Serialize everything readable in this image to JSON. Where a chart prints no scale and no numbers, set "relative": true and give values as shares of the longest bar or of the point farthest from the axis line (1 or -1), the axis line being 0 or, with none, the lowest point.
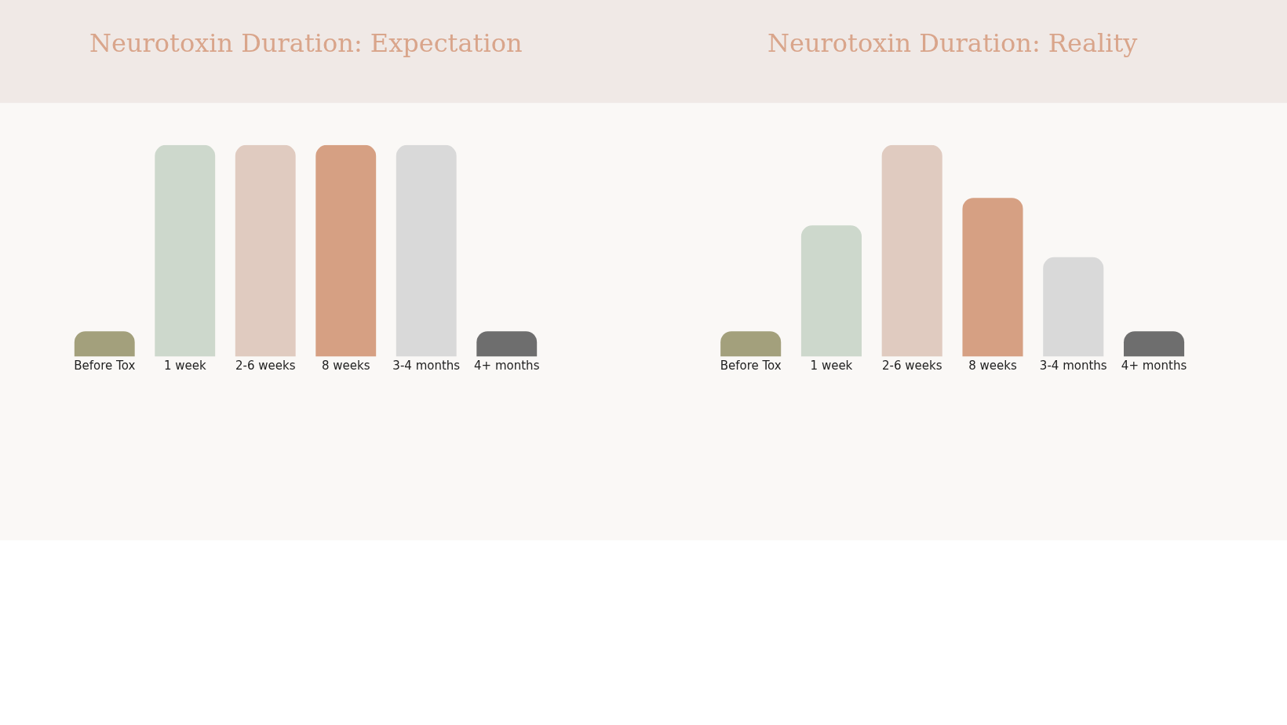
{
  "chart_data": [
    {
      "type": "bar",
      "title": "Neurotoxin Duration: Expectation",
      "relative": true,
      "categories": [
        "Before Tox",
        "1 week",
        "2-6 weeks",
        "8 weeks",
        "3-4 months",
        "4+ months"
      ],
      "values": [
        0.12,
        1,
        1,
        1,
        1,
        0.12
      ],
      "colors": [
        "#a3a07c",
        "#cdd8cc",
        "#e0cbc0",
        "#d6a083",
        "#d9d9d9",
        "#6e6e6e"
      ]
    },
    {
      "type": "bar",
      "title": "Neurotoxin Duration: Reality",
      "relative": true,
      "categories": [
        "Before Tox",
        "1 week",
        "2-6 weeks",
        "8 weeks",
        "3-4 months",
        "4+ months"
      ],
      "values": [
        0.12,
        0.62,
        1,
        0.75,
        0.47,
        0.12
      ],
      "colors": [
        "#a3a07c",
        "#cdd8cc",
        "#e0cbc0",
        "#d6a083",
        "#d9d9d9",
        "#6e6e6e"
      ]
    }
  ]
}
